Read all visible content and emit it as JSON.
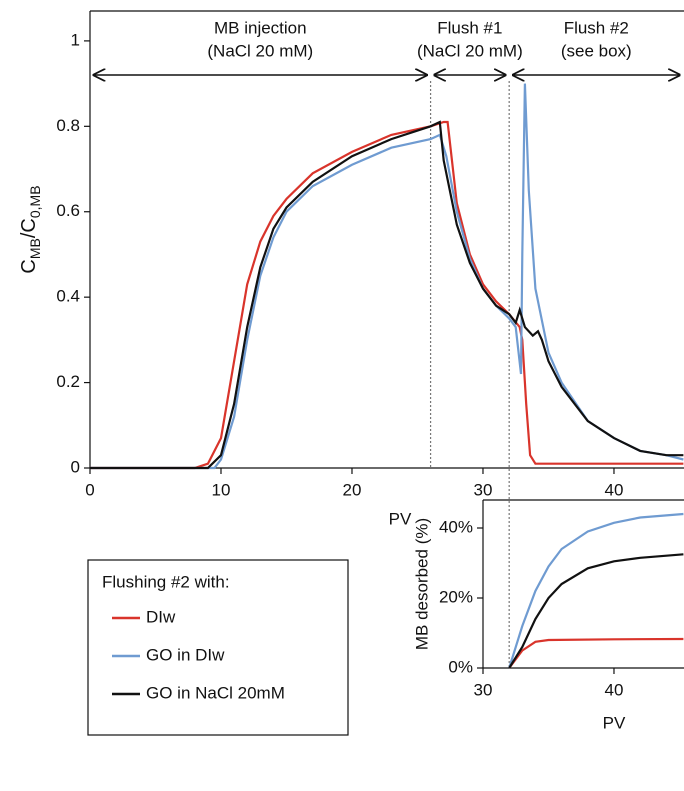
{
  "chart_data": [
    {
      "type": "line",
      "ylabel": [
        "C",
        "MB",
        "/C",
        "0,MB"
      ],
      "xlabel": "PV",
      "xlim": [
        0,
        45.3
      ],
      "ylim": [
        0,
        1.07
      ],
      "xticks": [
        0,
        10,
        20,
        30,
        40
      ],
      "yticks": [
        0,
        0.2,
        0.4,
        0.6,
        0.8,
        1
      ],
      "vlines": [
        26,
        32
      ],
      "regions": [
        {
          "label": [
            "MB injection",
            "(NaCl 20 mM)"
          ]
        },
        {
          "label": [
            "Flush #1",
            "(NaCl 20 mM)"
          ]
        },
        {
          "label": [
            "Flush #2",
            "(see box)"
          ]
        }
      ],
      "series": [
        {
          "name": "DIw",
          "color": "#d9342b",
          "x": [
            0,
            8,
            9,
            10,
            11,
            12,
            13,
            14,
            15,
            17,
            20,
            23,
            26,
            27,
            27.3,
            28,
            29,
            30,
            31,
            32,
            32.8,
            33,
            33.3,
            33.6,
            34,
            35,
            40,
            45.3
          ],
          "values": [
            0,
            0,
            0.01,
            0.07,
            0.25,
            0.43,
            0.53,
            0.59,
            0.63,
            0.69,
            0.74,
            0.78,
            0.8,
            0.81,
            0.81,
            0.62,
            0.5,
            0.43,
            0.39,
            0.36,
            0.33,
            0.3,
            0.15,
            0.03,
            0.01,
            0.01,
            0.01,
            0.01
          ]
        },
        {
          "name": "GO in DIw",
          "color": "#6f9bd1",
          "x": [
            0,
            9.5,
            10,
            11,
            12,
            13,
            14,
            15,
            17,
            20,
            23,
            26,
            26.7,
            27.2,
            28,
            29,
            30,
            31,
            32,
            32.5,
            32.9,
            33,
            33.2,
            33.5,
            34,
            35,
            36,
            38,
            40,
            42,
            44,
            45.3
          ],
          "values": [
            0,
            0,
            0.02,
            0.12,
            0.3,
            0.45,
            0.54,
            0.6,
            0.66,
            0.71,
            0.75,
            0.77,
            0.78,
            0.73,
            0.6,
            0.49,
            0.42,
            0.38,
            0.35,
            0.33,
            0.22,
            0.5,
            0.9,
            0.65,
            0.42,
            0.27,
            0.2,
            0.11,
            0.07,
            0.04,
            0.03,
            0.02
          ]
        },
        {
          "name": "GO in NaCl 20mM",
          "color": "#111111",
          "x": [
            0,
            9,
            10,
            11,
            12,
            13,
            14,
            15,
            17,
            20,
            23,
            26,
            26.7,
            27,
            28,
            29,
            30,
            31,
            32,
            32.5,
            32.8,
            33.2,
            33.8,
            34.2,
            34.5,
            35,
            36,
            38,
            40,
            42,
            44,
            45.3
          ],
          "values": [
            0,
            0,
            0.03,
            0.15,
            0.33,
            0.47,
            0.56,
            0.61,
            0.67,
            0.73,
            0.77,
            0.8,
            0.81,
            0.72,
            0.57,
            0.48,
            0.42,
            0.38,
            0.36,
            0.34,
            0.37,
            0.33,
            0.31,
            0.32,
            0.3,
            0.25,
            0.19,
            0.11,
            0.07,
            0.04,
            0.03,
            0.03
          ]
        }
      ]
    },
    {
      "type": "line",
      "ylabel": "MB desorbed (%)",
      "xlabel": "PV",
      "xlim": [
        30,
        45.3
      ],
      "ylim": [
        0,
        48
      ],
      "xticks": [
        30,
        40
      ],
      "yticks": [
        {
          "value": 0,
          "label": "0%"
        },
        {
          "value": 20,
          "label": "20%"
        },
        {
          "value": 40,
          "label": "40%"
        }
      ],
      "legend_title": "Flushing #2 with:",
      "series": [
        {
          "name": "DIw",
          "color": "#d9342b",
          "x": [
            32,
            33,
            34,
            35,
            40,
            45.3
          ],
          "values": [
            0,
            5,
            7.5,
            8,
            8.2,
            8.3
          ]
        },
        {
          "name": "GO in DIw",
          "color": "#6f9bd1",
          "x": [
            32,
            33,
            34,
            35,
            36,
            38,
            40,
            42,
            45.3
          ],
          "values": [
            0,
            12,
            22,
            29,
            34,
            39,
            41.5,
            43,
            44
          ]
        },
        {
          "name": "GO in NaCl 20mM",
          "color": "#111111",
          "x": [
            32,
            33,
            34,
            35,
            36,
            38,
            40,
            42,
            45.3
          ],
          "values": [
            0,
            6,
            14,
            20,
            24,
            28.5,
            30.5,
            31.5,
            32.5
          ]
        }
      ]
    }
  ]
}
